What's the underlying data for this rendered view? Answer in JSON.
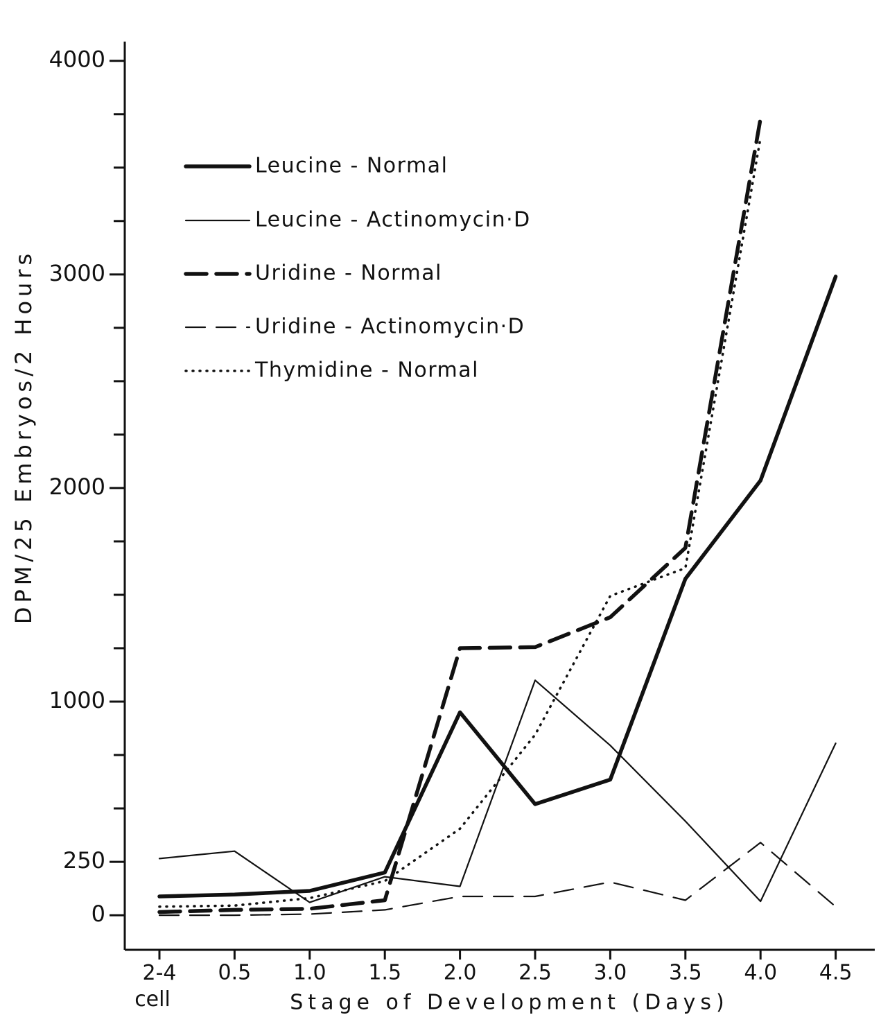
{
  "chart_data": {
    "type": "line",
    "y_label": "DPM/25 Embryos/2 Hours",
    "x_label": "Stage of Development (Days)",
    "categories": [
      "2-4 cell",
      "0.5",
      "1.0",
      "1.5",
      "2.0",
      "2.5",
      "3.0",
      "3.5",
      "4.0",
      "4.5"
    ],
    "ylim": [
      -162,
      4090
    ],
    "yticks": [
      0,
      250,
      1000,
      2000,
      3000,
      4000
    ],
    "yminorticks": [
      500,
      750,
      1250,
      1500,
      1750,
      2250,
      2500,
      2750,
      3250,
      3500,
      3750
    ],
    "legend": "upper-left",
    "series": [
      {
        "name": "Leucine - Normal",
        "color": "#111111",
        "style": "solid",
        "weight": "heavy",
        "values": [
          88,
          97,
          114,
          200,
          950,
          520,
          635,
          1575,
          2035,
          2990
        ]
      },
      {
        "name": "Leucine - Actinomycin·D",
        "color": "#111111",
        "style": "solid",
        "weight": "light",
        "values": [
          265,
          300,
          60,
          180,
          135,
          1100,
          795,
          440,
          65,
          805
        ]
      },
      {
        "name": "Uridine - Normal",
        "color": "#111111",
        "style": "dashed",
        "weight": "heavy",
        "values": [
          15,
          25,
          30,
          70,
          1250,
          1255,
          1395,
          1720,
          3730,
          null
        ]
      },
      {
        "name": "Uridine - Actinomycin·D",
        "color": "#111111",
        "style": "dashed",
        "weight": "light",
        "values": [
          0,
          0,
          5,
          25,
          88,
          88,
          155,
          70,
          340,
          40
        ]
      },
      {
        "name": "Thymidine - Normal",
        "color": "#111111",
        "style": "dotted",
        "weight": "medium",
        "values": [
          40,
          45,
          80,
          160,
          405,
          845,
          1495,
          1625,
          3640,
          null
        ]
      }
    ]
  }
}
